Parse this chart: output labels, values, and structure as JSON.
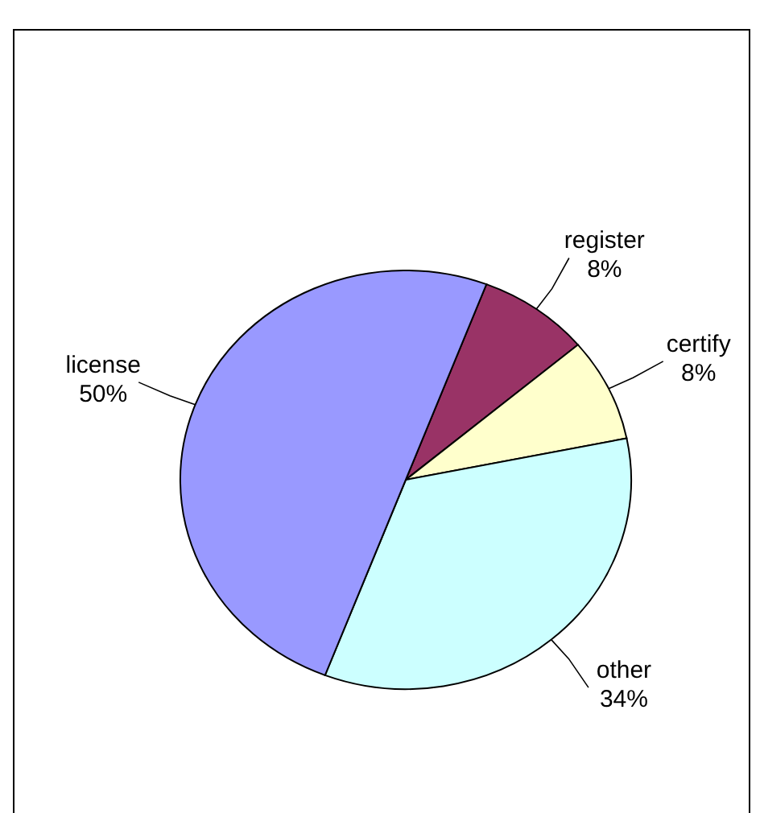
{
  "chart_data": {
    "type": "pie",
    "categories": [
      "register",
      "certify",
      "other",
      "license"
    ],
    "values": [
      8,
      8,
      34,
      50
    ],
    "value_labels": [
      "8%",
      "8%",
      "34%",
      "50%"
    ],
    "colors": [
      "#993366",
      "#ffffcc",
      "#ccffff",
      "#9999ff"
    ]
  }
}
